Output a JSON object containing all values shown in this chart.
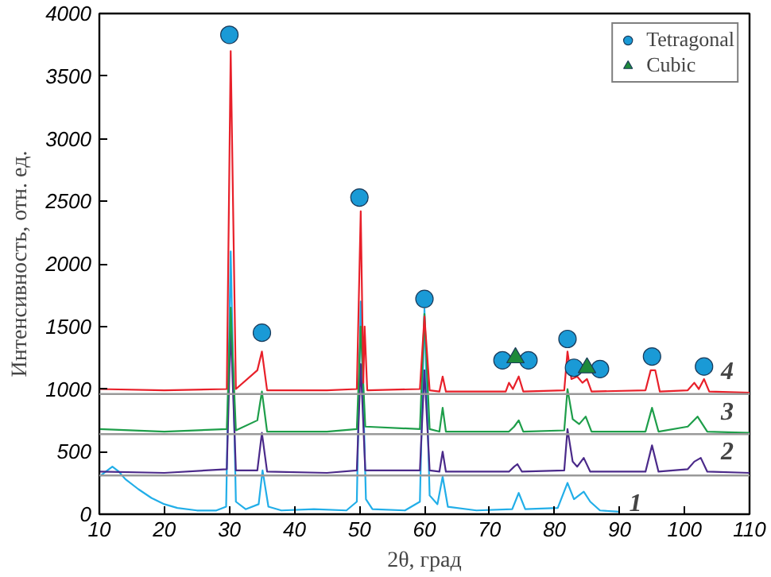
{
  "chart_data": {
    "type": "line",
    "xlabel": "2θ, град",
    "ylabel": "Интенсивность, отн. ед.",
    "xlim": [
      10,
      110
    ],
    "ylim": [
      0,
      4000
    ],
    "xticks": [
      10,
      20,
      30,
      40,
      50,
      60,
      70,
      80,
      90,
      100,
      110
    ],
    "yticks": [
      0,
      500,
      1000,
      1500,
      2000,
      2500,
      3000,
      3500,
      4000
    ],
    "grid": false,
    "legend": "top right",
    "marker": "none",
    "line_style": "solid",
    "series": [
      {
        "name": "1",
        "color": "#22aee8",
        "x": [
          10,
          11,
          12,
          13,
          14,
          16,
          18,
          20,
          22,
          25,
          28,
          29.5,
          30.2,
          31,
          32.5,
          34.5,
          35.1,
          36,
          38,
          43,
          48,
          49.6,
          50.2,
          51,
          52,
          57,
          59.3,
          60,
          60.8,
          62,
          62.8,
          63.6,
          68,
          73.5,
          74.5,
          75.5,
          80.5,
          82,
          83,
          84.5,
          85.5,
          87,
          90
        ],
        "values": [
          300,
          340,
          380,
          340,
          280,
          200,
          130,
          80,
          50,
          30,
          30,
          60,
          2100,
          100,
          40,
          80,
          350,
          60,
          30,
          40,
          30,
          100,
          1700,
          120,
          40,
          30,
          100,
          1640,
          150,
          80,
          300,
          60,
          30,
          40,
          170,
          40,
          50,
          250,
          120,
          180,
          100,
          30,
          20
        ]
      },
      {
        "name": "2",
        "color": "#4b2a8a",
        "x": [
          10,
          20,
          29.6,
          30.2,
          31,
          34.3,
          35,
          35.8,
          45,
          49.6,
          50.2,
          50.9,
          59.3,
          60,
          60.8,
          62.3,
          62.8,
          63.3,
          73,
          73.8,
          74.3,
          75,
          81.5,
          82,
          82.8,
          83.5,
          84.5,
          85.5,
          94,
          95,
          96,
          100.5,
          101.5,
          102.5,
          103.5,
          110
        ],
        "values": [
          340,
          330,
          360,
          1500,
          350,
          350,
          650,
          340,
          330,
          350,
          1200,
          350,
          350,
          1150,
          350,
          340,
          500,
          340,
          340,
          380,
          400,
          340,
          350,
          680,
          420,
          380,
          450,
          340,
          340,
          550,
          340,
          360,
          420,
          450,
          340,
          330
        ]
      },
      {
        "name": "3",
        "color": "#1e9e4a",
        "x": [
          10,
          20,
          29.6,
          30.2,
          31,
          34.3,
          35,
          35.8,
          45,
          49.6,
          50.2,
          50.9,
          59.3,
          60,
          60.8,
          62.3,
          62.8,
          63.3,
          73,
          73.8,
          74.5,
          75.2,
          81.5,
          82,
          82.8,
          83.8,
          84.8,
          85.7,
          94,
          95,
          96,
          100.5,
          102,
          103.5,
          110
        ],
        "values": [
          680,
          660,
          680,
          1650,
          670,
          750,
          980,
          660,
          660,
          680,
          1500,
          700,
          680,
          1600,
          680,
          660,
          850,
          660,
          660,
          700,
          750,
          660,
          670,
          1000,
          760,
          720,
          780,
          660,
          660,
          850,
          660,
          700,
          780,
          660,
          650
        ]
      },
      {
        "name": "4",
        "color": "#e8202a",
        "x": [
          10,
          20,
          29.6,
          30.2,
          31,
          34.3,
          35,
          35.8,
          45,
          49.6,
          50.2,
          50.6,
          50.8,
          51.2,
          59.3,
          60,
          60.8,
          62.3,
          62.8,
          63.3,
          72.5,
          73,
          73.6,
          74.5,
          75.2,
          81.5,
          82,
          82.6,
          83.5,
          84.3,
          85,
          85.7,
          94,
          94.8,
          95.5,
          96.2,
          100.5,
          101.5,
          102.2,
          103,
          103.8,
          110
        ],
        "values": [
          1000,
          990,
          1000,
          3700,
          1000,
          1150,
          1300,
          990,
          990,
          1000,
          2420,
          1050,
          1500,
          990,
          1000,
          1580,
          990,
          980,
          1100,
          980,
          980,
          1050,
          1000,
          1100,
          980,
          990,
          1300,
          1080,
          1100,
          1050,
          1080,
          980,
          990,
          1150,
          1150,
          980,
          990,
          1050,
          1000,
          1080,
          980,
          970
        ]
      },
      {
        "type": "scatter",
        "name": "Tetragonal",
        "marker": "circle",
        "color": "#1a9ad6",
        "x": [
          30,
          35,
          50,
          60,
          72,
          76,
          82,
          83,
          87,
          95,
          103
        ],
        "values": [
          3830,
          1450,
          2530,
          1720,
          1230,
          1230,
          1400,
          1170,
          1160,
          1260,
          1180
        ]
      },
      {
        "type": "scatter",
        "name": "Cubic",
        "marker": "triangle",
        "color": "#1e8a3a",
        "x": [
          74,
          85
        ],
        "values": [
          1250,
          1170
        ]
      }
    ],
    "ref_lines": [
      {
        "axis": "y",
        "value": 310,
        "label": null,
        "color": "#999999"
      },
      {
        "axis": "y",
        "value": 640,
        "label": null,
        "color": "#999999"
      },
      {
        "axis": "y",
        "value": 960,
        "label": null,
        "color": "#999999"
      }
    ]
  }
}
